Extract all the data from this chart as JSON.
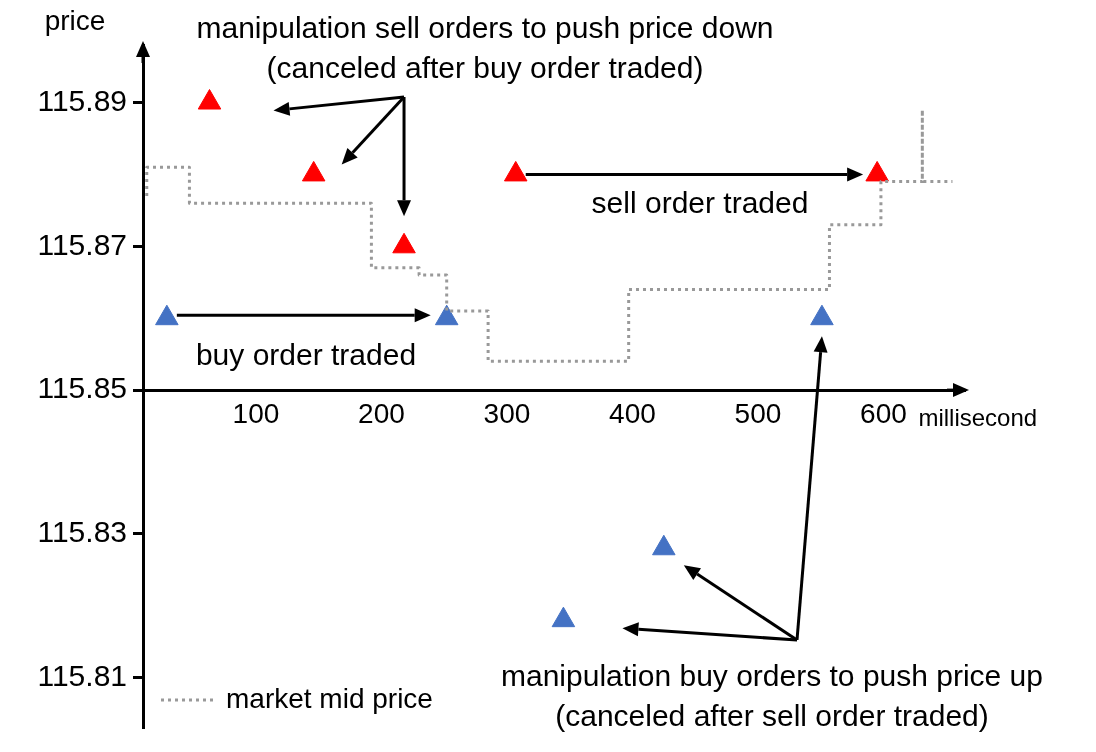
{
  "chart_data": {
    "type": "scatter",
    "xlabel": "millisecond",
    "ylabel": "price",
    "xlim": [
      10,
      665
    ],
    "xticks": [
      100,
      200,
      300,
      400,
      500,
      600
    ],
    "ylim": [
      115.803,
      115.898
    ],
    "yticks": [
      115.81,
      115.83,
      115.85,
      115.87,
      115.89
    ],
    "grid": false,
    "legend": "bottom left",
    "marker": "triangle",
    "annotations": [
      "manipulation sell orders to push price down (canceled after buy order traded)",
      "sell order traded",
      "buy order traded",
      "manipulation buy orders to push price up (canceled after sell order traded)"
    ],
    "series": [
      {
        "name": "market mid price",
        "type": "step",
        "color": "#999999",
        "line_style": "dotted",
        "marker": "none",
        "x": [
          13,
          13,
          47,
          192,
          230,
          252,
          285,
          397,
          557,
          598,
          631,
          631,
          655
        ],
        "values": [
          115.877,
          115.881,
          115.876,
          115.867,
          115.866,
          115.861,
          115.854,
          115.864,
          115.873,
          115.879,
          115.889,
          115.879,
          115.879
        ]
      },
      {
        "type": "scatter",
        "color": "#ff0000",
        "x": [
          63,
          146,
          218,
          307,
          595
        ],
        "values": [
          115.89,
          115.88,
          115.87,
          115.88,
          115.88
        ]
      },
      {
        "type": "scatter",
        "color": "#4472c4",
        "x": [
          29,
          252,
          551,
          425,
          345
        ],
        "values": [
          115.86,
          115.86,
          115.86,
          115.828,
          115.818
        ]
      }
    ]
  }
}
